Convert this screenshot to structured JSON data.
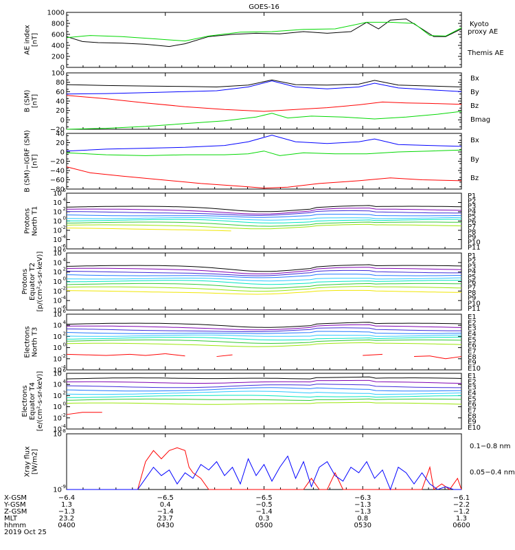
{
  "title": "GOES-16",
  "colors": {
    "black": "#000000",
    "red": "#ff0000",
    "green": "#00d800",
    "blue": "#0000ff",
    "rainbow": [
      "#000000",
      "#7f00b2",
      "#3c28d8",
      "#1e78ff",
      "#28c8ff",
      "#00e6be",
      "#32c832",
      "#9be60a",
      "#f0e600",
      "#ffb400",
      "#e65000",
      "#ff0000"
    ]
  },
  "chart_data": [
    {
      "type": "line",
      "ylabel": [
        "AE index",
        "[nT]"
      ],
      "ylim": [
        0,
        1000
      ],
      "yticks": [
        "1000",
        "800",
        "600",
        "400",
        "200",
        "0"
      ],
      "legend": [
        {
          "name": "Kyoto",
          "color": "#00d800"
        },
        {
          "name": "proxy AE",
          "color": "#00d800"
        },
        {
          "name": "Themis AE",
          "color": "#000000"
        }
      ],
      "series": [
        {
          "name": "Themis AE",
          "color": "#000000",
          "x": [
            0,
            0.04,
            0.08,
            0.14,
            0.2,
            0.26,
            0.3,
            0.36,
            0.42,
            0.48,
            0.54,
            0.6,
            0.66,
            0.72,
            0.76,
            0.79,
            0.82,
            0.86,
            0.9,
            0.93,
            0.96,
            1.0
          ],
          "y": [
            560,
            470,
            450,
            440,
            420,
            380,
            430,
            560,
            600,
            620,
            610,
            650,
            620,
            650,
            820,
            700,
            860,
            880,
            700,
            560,
            560,
            700
          ]
        },
        {
          "name": "Kyoto proxy AE",
          "color": "#00d800",
          "x": [
            0,
            0.06,
            0.14,
            0.22,
            0.3,
            0.36,
            0.44,
            0.52,
            0.6,
            0.68,
            0.76,
            0.82,
            0.88,
            0.92,
            0.96,
            1.0
          ],
          "y": [
            540,
            580,
            560,
            520,
            480,
            570,
            640,
            650,
            690,
            700,
            820,
            820,
            800,
            580,
            570,
            720
          ]
        }
      ]
    },
    {
      "type": "line",
      "ylabel": [
        "B (SM)",
        "[nT]"
      ],
      "ylim": [
        -20,
        100
      ],
      "yticks": [
        "100",
        "80",
        "60",
        "40",
        "20",
        "0",
        "−20"
      ],
      "legend": [
        {
          "name": "Bx",
          "color": "#0000ff"
        },
        {
          "name": "By",
          "color": "#00d800"
        },
        {
          "name": "Bz",
          "color": "#ff0000"
        },
        {
          "name": "Bmag",
          "color": "#000000"
        }
      ],
      "series": [
        {
          "name": "Bmag",
          "color": "#000000",
          "x": [
            0,
            0.1,
            0.2,
            0.3,
            0.38,
            0.46,
            0.52,
            0.58,
            0.66,
            0.74,
            0.78,
            0.84,
            0.92,
            1.0
          ],
          "y": [
            75,
            73,
            72,
            71,
            70,
            74,
            85,
            75,
            74,
            76,
            84,
            74,
            72,
            70
          ]
        },
        {
          "name": "Bx",
          "color": "#0000ff",
          "x": [
            0,
            0.1,
            0.2,
            0.3,
            0.38,
            0.46,
            0.52,
            0.58,
            0.66,
            0.74,
            0.78,
            0.84,
            0.92,
            1.0
          ],
          "y": [
            55,
            56,
            58,
            60,
            62,
            70,
            83,
            70,
            66,
            70,
            78,
            68,
            64,
            60
          ]
        },
        {
          "name": "Bz",
          "color": "#ff0000",
          "x": [
            0,
            0.1,
            0.2,
            0.3,
            0.4,
            0.5,
            0.58,
            0.66,
            0.74,
            0.8,
            0.86,
            0.92,
            1.0
          ],
          "y": [
            52,
            45,
            36,
            28,
            22,
            18,
            22,
            26,
            32,
            38,
            36,
            35,
            33
          ]
        },
        {
          "name": "By",
          "color": "#00d800",
          "x": [
            0,
            0.1,
            0.2,
            0.3,
            0.4,
            0.48,
            0.52,
            0.56,
            0.62,
            0.7,
            0.78,
            0.86,
            0.94,
            1.0
          ],
          "y": [
            -20,
            -18,
            -14,
            -8,
            -2,
            6,
            14,
            4,
            8,
            6,
            2,
            6,
            12,
            18
          ]
        }
      ]
    },
    {
      "type": "line",
      "ylabel": [
        "B (SM)−IGRF (SM)",
        "[nT]"
      ],
      "ylim": [
        -80,
        40
      ],
      "yticks": [
        "40",
        "20",
        "0",
        "−20",
        "−40",
        "−60",
        "−80"
      ],
      "legend": [
        {
          "name": "Bx",
          "color": "#0000ff"
        },
        {
          "name": "By",
          "color": "#00d800"
        },
        {
          "name": "Bz",
          "color": "#ff0000"
        }
      ],
      "series": [
        {
          "name": "Bx",
          "color": "#0000ff",
          "x": [
            0,
            0.1,
            0.2,
            0.3,
            0.4,
            0.46,
            0.52,
            0.58,
            0.66,
            0.74,
            0.78,
            0.84,
            0.92,
            1.0
          ],
          "y": [
            2,
            6,
            8,
            10,
            14,
            22,
            36,
            22,
            18,
            22,
            28,
            16,
            14,
            12
          ]
        },
        {
          "name": "By",
          "color": "#00d800",
          "x": [
            0,
            0.1,
            0.2,
            0.3,
            0.4,
            0.46,
            0.5,
            0.54,
            0.6,
            0.68,
            0.76,
            0.84,
            0.92,
            1.0
          ],
          "y": [
            -2,
            -6,
            -8,
            -6,
            -6,
            -4,
            2,
            -8,
            -2,
            -4,
            -4,
            0,
            2,
            4
          ]
        },
        {
          "name": "Bz",
          "color": "#ff0000",
          "x": [
            0,
            0.06,
            0.14,
            0.24,
            0.34,
            0.44,
            0.5,
            0.56,
            0.64,
            0.74,
            0.82,
            0.9,
            1.0
          ],
          "y": [
            -32,
            -45,
            -52,
            -60,
            -68,
            -74,
            -78,
            -76,
            -68,
            -62,
            -56,
            -60,
            -62
          ]
        }
      ]
    },
    {
      "type": "line",
      "ylabel": [
        "Protons",
        "North T1"
      ],
      "log": true,
      "ylim": [
        -6,
        6
      ],
      "yticks": [
        "10",
        "10",
        "10",
        "10",
        "10",
        "10",
        "10"
      ],
      "ytick_exp": [
        "6",
        "4",
        "2",
        "0",
        "-2",
        "-4",
        "-6"
      ],
      "legend": [
        {
          "name": "P1"
        },
        {
          "name": "P2"
        },
        {
          "name": "P3"
        },
        {
          "name": "P4"
        },
        {
          "name": "P5"
        },
        {
          "name": "P6"
        },
        {
          "name": "P7"
        },
        {
          "name": "P8"
        },
        {
          "name": "P9"
        },
        {
          "name": "P10"
        },
        {
          "name": "P11"
        }
      ],
      "channels": [
        3.0,
        2.4,
        1.9,
        1.3,
        0.7,
        0.2,
        -0.4,
        -1.0,
        -1.7
      ],
      "dip": 0.8,
      "channel_end": [
        1,
        1,
        1,
        1,
        1,
        1,
        1,
        1,
        0.43
      ]
    },
    {
      "type": "line",
      "ylabel": [
        "Protons",
        "Equator T2",
        "[p/(cm²-s-sr-keV)]"
      ],
      "log": true,
      "ylim": [
        -6,
        6
      ],
      "yticks": [
        "10",
        "10",
        "10",
        "10",
        "10",
        "10",
        "10"
      ],
      "ytick_exp": [
        "6",
        "4",
        "2",
        "0",
        "-2",
        "-4",
        "-6"
      ],
      "legend": [
        {
          "name": "P1"
        },
        {
          "name": "P2"
        },
        {
          "name": "P3"
        },
        {
          "name": "P4"
        },
        {
          "name": "P5"
        },
        {
          "name": "P6"
        },
        {
          "name": "P7"
        },
        {
          "name": "P8"
        },
        {
          "name": "P9"
        },
        {
          "name": "P10"
        },
        {
          "name": "P11"
        }
      ],
      "channels": [
        3.2,
        2.6,
        2.0,
        1.4,
        0.7,
        0.1,
        -0.6,
        -1.3,
        -2.1
      ],
      "dip": 0.9,
      "channel_end": [
        1,
        1,
        1,
        1,
        1,
        1,
        1,
        1,
        1
      ]
    },
    {
      "type": "line",
      "ylabel": [
        "Electrons",
        "North T3"
      ],
      "log": true,
      "ylim": [
        -4,
        6
      ],
      "yticks": [
        "10",
        "10",
        "10",
        "10",
        "10",
        "10"
      ],
      "ytick_exp": [
        "6",
        "4",
        "2",
        "0",
        "-2",
        "-4"
      ],
      "legend": [
        {
          "name": "E1"
        },
        {
          "name": "E2"
        },
        {
          "name": "E3"
        },
        {
          "name": "E4"
        },
        {
          "name": "E5"
        },
        {
          "name": "E6"
        },
        {
          "name": "E7"
        },
        {
          "name": "E8"
        },
        {
          "name": "E9"
        },
        {
          "name": "E10"
        }
      ],
      "channels": [
        4.2,
        3.7,
        3.2,
        2.7,
        2.2,
        1.7,
        1.2,
        0.6
      ],
      "dip": 0.4,
      "channel_end": [
        1,
        1,
        1,
        1,
        1,
        1,
        1,
        1
      ]
    },
    {
      "type": "line",
      "ylabel": [
        "Electrons",
        "Equator T4",
        "[e/(cm²-s-sr-keV)]"
      ],
      "log": true,
      "ylim": [
        -4,
        6
      ],
      "yticks": [
        "10",
        "10",
        "10",
        "10",
        "10",
        "10"
      ],
      "ytick_exp": [
        "6",
        "4",
        "2",
        "0",
        "-2",
        "-4"
      ],
      "legend": [
        {
          "name": "E1"
        },
        {
          "name": "E2"
        },
        {
          "name": "E3"
        },
        {
          "name": "E4"
        },
        {
          "name": "E5"
        },
        {
          "name": "E6"
        },
        {
          "name": "E7"
        },
        {
          "name": "E8"
        },
        {
          "name": "E9"
        },
        {
          "name": "E10"
        }
      ],
      "channels": [
        5.0,
        4.3,
        3.6,
        3.0,
        2.4,
        1.8,
        1.2,
        0.5
      ],
      "dip": -0.3,
      "channel_end": [
        1,
        1,
        1,
        1,
        1,
        1,
        1,
        1
      ]
    },
    {
      "type": "line",
      "ylabel": [
        "Xray flux",
        "[W/m2]"
      ],
      "log": true,
      "ylim": [
        -9,
        -8
      ],
      "yticks": [
        "10",
        "10"
      ],
      "ytick_exp": [
        "-8",
        "-9"
      ],
      "legend": [
        {
          "name": "0.1−0.8 nm",
          "color": "#ff0000"
        },
        {
          "name": "0.05−0.4 nm",
          "color": "#0000ff"
        }
      ],
      "series": [
        {
          "name": "0.1−0.8 nm",
          "color": "#ff0000",
          "x": [
            0.18,
            0.2,
            0.22,
            0.24,
            0.26,
            0.28,
            0.3,
            0.31,
            0.32,
            0.34,
            0.36,
            0.38,
            0.4,
            0.6,
            0.62,
            0.64,
            0.66,
            0.68,
            0.7,
            0.9,
            0.92,
            0.93,
            0.95,
            0.97,
            0.99,
            1.0
          ],
          "y": [
            -9.0,
            -8.5,
            -8.3,
            -8.45,
            -8.3,
            -8.25,
            -8.3,
            -8.6,
            -8.7,
            -8.8,
            -9.0,
            -9.0,
            -9.0,
            -9.0,
            -8.8,
            -9.0,
            -9.0,
            -8.7,
            -9.0,
            -9.0,
            -8.6,
            -9.0,
            -8.9,
            -9.0,
            -8.8,
            -9.0
          ]
        },
        {
          "name": "0.05−0.4 nm",
          "color": "#0000ff",
          "x": [
            0.0,
            0.1,
            0.18,
            0.2,
            0.22,
            0.24,
            0.26,
            0.28,
            0.3,
            0.32,
            0.34,
            0.36,
            0.38,
            0.4,
            0.42,
            0.44,
            0.46,
            0.48,
            0.5,
            0.52,
            0.54,
            0.56,
            0.58,
            0.6,
            0.62,
            0.64,
            0.66,
            0.68,
            0.7,
            0.72,
            0.74,
            0.76,
            0.78,
            0.8,
            0.82,
            0.84,
            0.86,
            0.88,
            0.9,
            0.92,
            0.94,
            0.96,
            0.98,
            1.0
          ],
          "y": [
            -9.0,
            -9.0,
            -9.0,
            -8.8,
            -8.6,
            -8.75,
            -8.65,
            -8.9,
            -8.7,
            -8.8,
            -8.55,
            -8.65,
            -8.5,
            -8.75,
            -8.6,
            -8.9,
            -8.45,
            -8.75,
            -8.55,
            -8.85,
            -8.6,
            -8.4,
            -8.8,
            -8.5,
            -8.95,
            -8.6,
            -8.5,
            -8.75,
            -8.85,
            -8.6,
            -8.7,
            -8.5,
            -8.8,
            -8.65,
            -9.0,
            -8.6,
            -8.7,
            -8.9,
            -8.7,
            -8.9,
            -9.0,
            -8.95,
            -9.0,
            -9.0
          ]
        }
      ]
    }
  ],
  "x_axis": {
    "row_labels": [
      "X-GSM",
      "Y-GSM",
      "Z-GSM",
      "MLT",
      "hhmm",
      "2019 Oct 25"
    ],
    "ticks": [
      {
        "xgsm": "−6.4",
        "ygsm": "1.3",
        "zgsm": "−1.3",
        "mlt": "23.2",
        "hhmm": "0400"
      },
      {
        "xgsm": "−6.5",
        "ygsm": "0.4",
        "zgsm": "−1.4",
        "mlt": "23.7",
        "hhmm": "0430"
      },
      {
        "xgsm": "−6.5",
        "ygsm": "−0.5",
        "zgsm": "−1.4",
        "mlt": "0.3",
        "hhmm": "0500"
      },
      {
        "xgsm": "−6.3",
        "ygsm": "−1.3",
        "zgsm": "−1.3",
        "mlt": "0.8",
        "hhmm": "0530"
      },
      {
        "xgsm": "−6.1",
        "ygsm": "−2.2",
        "zgsm": "−1.2",
        "mlt": "1.3",
        "hhmm": "0600"
      }
    ]
  }
}
